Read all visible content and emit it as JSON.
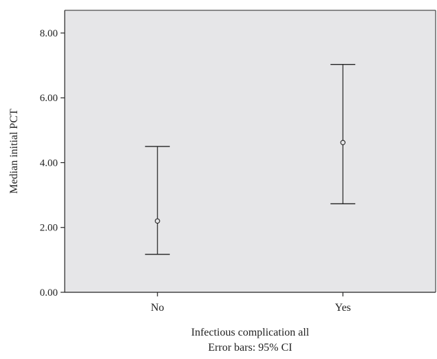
{
  "chart_data": {
    "type": "errorbar",
    "categories": [
      "No",
      "Yes"
    ],
    "series": [
      {
        "center": [
          2.2,
          4.62
        ],
        "lower": [
          1.17,
          2.73
        ],
        "upper": [
          4.5,
          7.03
        ]
      }
    ],
    "ylabel": "Median initial PCT",
    "xlabel": "Infectious complication all",
    "note": "Error bars: 95% CI",
    "ylim": [
      0,
      8.7
    ],
    "yticks": [
      0,
      2,
      4,
      6,
      8
    ],
    "ytick_labels": [
      "0.00",
      "2.00",
      "4.00",
      "6.00",
      "8.00"
    ],
    "grid": false,
    "colors": {
      "plot_background": "#e6e6e8",
      "axis": "#222222",
      "marks": "#222222"
    }
  }
}
